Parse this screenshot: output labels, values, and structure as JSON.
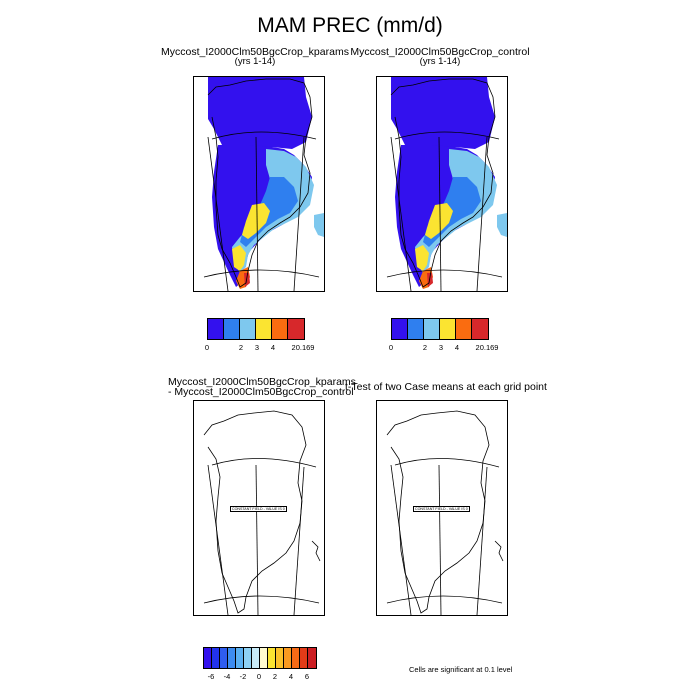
{
  "title": "MAM PREC (mm/d)",
  "panels": {
    "kparams": {
      "name": "Myccost_I2000Clm50BgcCrop_kparams",
      "years": "(yrs 1-14)"
    },
    "control": {
      "name": "Myccost_I2000Clm50BgcCrop_control",
      "years": "(yrs 1-14)"
    },
    "difference": {
      "line1": "Myccost_I2000Clm50BgcCrop_kparams",
      "line2": "- Myccost_I2000Clm50BgcCrop_control",
      "label": "CONSTANT FIELD - VALUE IS 0"
    },
    "ttest": {
      "title": "t-Test of two Case means at each grid point",
      "label": "CONSTANT FIELD - VALUE IS 0",
      "note": "Cells are significant at 0.1 level"
    }
  },
  "colorbar_main": {
    "colors": [
      "#3311ee",
      "#2f7fef",
      "#7ec8ee",
      "#fbe431",
      "#fa6c10",
      "#d7282b"
    ],
    "labels": [
      "0",
      "2",
      "3",
      "4",
      "20.169"
    ]
  },
  "colorbar_diff": {
    "colors": [
      "#3311ee",
      "#2233ee",
      "#2f5def",
      "#3d8cf0",
      "#5bb0f1",
      "#8ed1f4",
      "#c7ebf8",
      "#fffbd0",
      "#fbe431",
      "#fbc12a",
      "#fa9a20",
      "#f56a16",
      "#e33b18",
      "#cc1e23"
    ],
    "labels": [
      "-6",
      "-4",
      "-2",
      "0",
      "2",
      "4",
      "6"
    ]
  },
  "colors": {
    "low": "#3311ee",
    "mid": "#2f7fef",
    "light": "#7ec8ee",
    "yellow": "#fbe431",
    "orange": "#fa6c10",
    "red": "#d7282b"
  }
}
